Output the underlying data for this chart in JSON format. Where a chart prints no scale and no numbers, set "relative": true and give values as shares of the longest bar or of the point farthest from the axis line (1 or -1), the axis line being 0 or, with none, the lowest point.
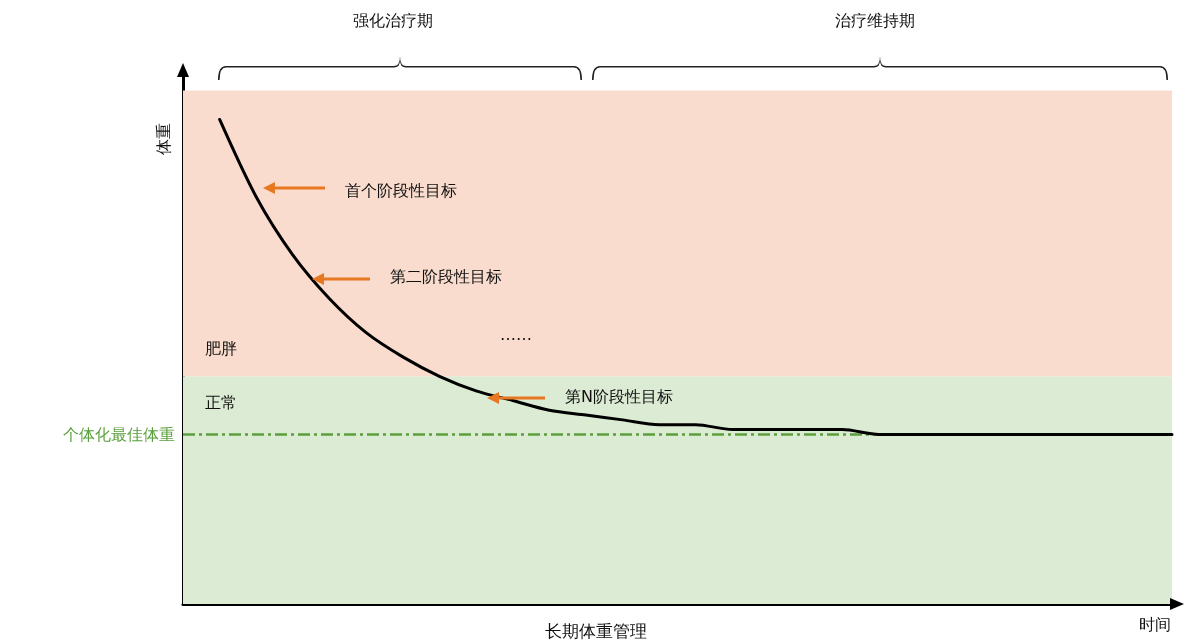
{
  "chart_data": {
    "type": "line",
    "relative": true,
    "title": "长期体重管理",
    "xlabel": "时间",
    "ylabel": "体重",
    "tick_labels": false,
    "grid": false,
    "marker": "none",
    "categories": [
      null,
      null,
      null,
      null,
      null,
      null,
      null,
      null,
      null,
      null,
      null,
      null,
      null,
      null,
      null,
      null,
      null,
      null,
      null,
      null,
      null,
      null,
      null,
      null,
      null,
      null,
      null,
      null
    ],
    "series": [
      {
        "color": "#000000",
        "values": [
          null,
          1,
          0.84,
          0.72,
          0.63,
          0.56,
          0.51,
          0.47,
          0.44,
          0.42,
          0.4,
          0.39,
          0.38,
          0.37,
          0.37,
          0.36,
          0.36,
          0.36,
          0.36,
          0.35,
          0.35,
          0.35,
          0.35,
          0.35,
          0.35,
          0.35,
          0.35,
          0.35
        ]
      }
    ],
    "bands": [
      {
        "axis": "y",
        "from": 0,
        "to": 0.47,
        "label": "正常",
        "color": "#dcebd3"
      },
      {
        "axis": "y",
        "from": 0.47,
        "to": 1.06,
        "label": "肥胖",
        "color": "#f9dccd"
      }
    ],
    "ref_lines": [
      {
        "axis": "y",
        "value": 0.35,
        "label": "个体化最佳体重",
        "color": "#5aa03c",
        "line_style": "dashed"
      }
    ],
    "annotations": [
      "强化治疗期",
      "治疗维持期",
      "首个阶段性目标",
      "第二阶段性目标",
      "……",
      "第N阶段性目标"
    ]
  }
}
